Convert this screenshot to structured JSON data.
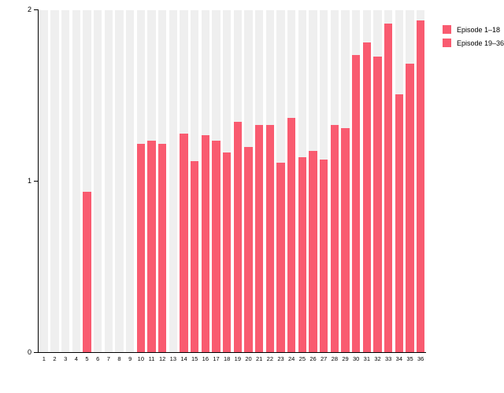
{
  "chart_data": {
    "type": "bar",
    "title": "",
    "xlabel": "",
    "ylabel": "",
    "categories": [
      "1",
      "2",
      "3",
      "4",
      "5",
      "6",
      "7",
      "8",
      "9",
      "10",
      "11",
      "12",
      "13",
      "14",
      "15",
      "16",
      "17",
      "18",
      "19",
      "20",
      "21",
      "22",
      "23",
      "24",
      "25",
      "26",
      "27",
      "28",
      "29",
      "30",
      "31",
      "32",
      "33",
      "34",
      "35",
      "36"
    ],
    "values": [
      0,
      0,
      0,
      0,
      0.94,
      0,
      0,
      0,
      0,
      1.22,
      1.24,
      1.22,
      0,
      1.28,
      1.12,
      1.27,
      1.24,
      1.17,
      1.35,
      1.2,
      1.33,
      1.33,
      1.11,
      1.37,
      1.14,
      1.18,
      1.13,
      1.33,
      1.31,
      1.74,
      1.81,
      1.73,
      1.92,
      1.51,
      1.69,
      1.94
    ],
    "ylim": [
      0,
      2
    ],
    "yticks": [
      0,
      1,
      2
    ],
    "grid": false,
    "background_bars_full_height": true,
    "legend_position": "top-right",
    "legend": [
      {
        "label": "Episode 1–18",
        "color": "#f95b70"
      },
      {
        "label": "Episode 19–36",
        "color": "#f95b70"
      }
    ],
    "colors": {
      "bar": "#f95b70",
      "background_bar": "#efefef",
      "axis": "#000000"
    }
  }
}
